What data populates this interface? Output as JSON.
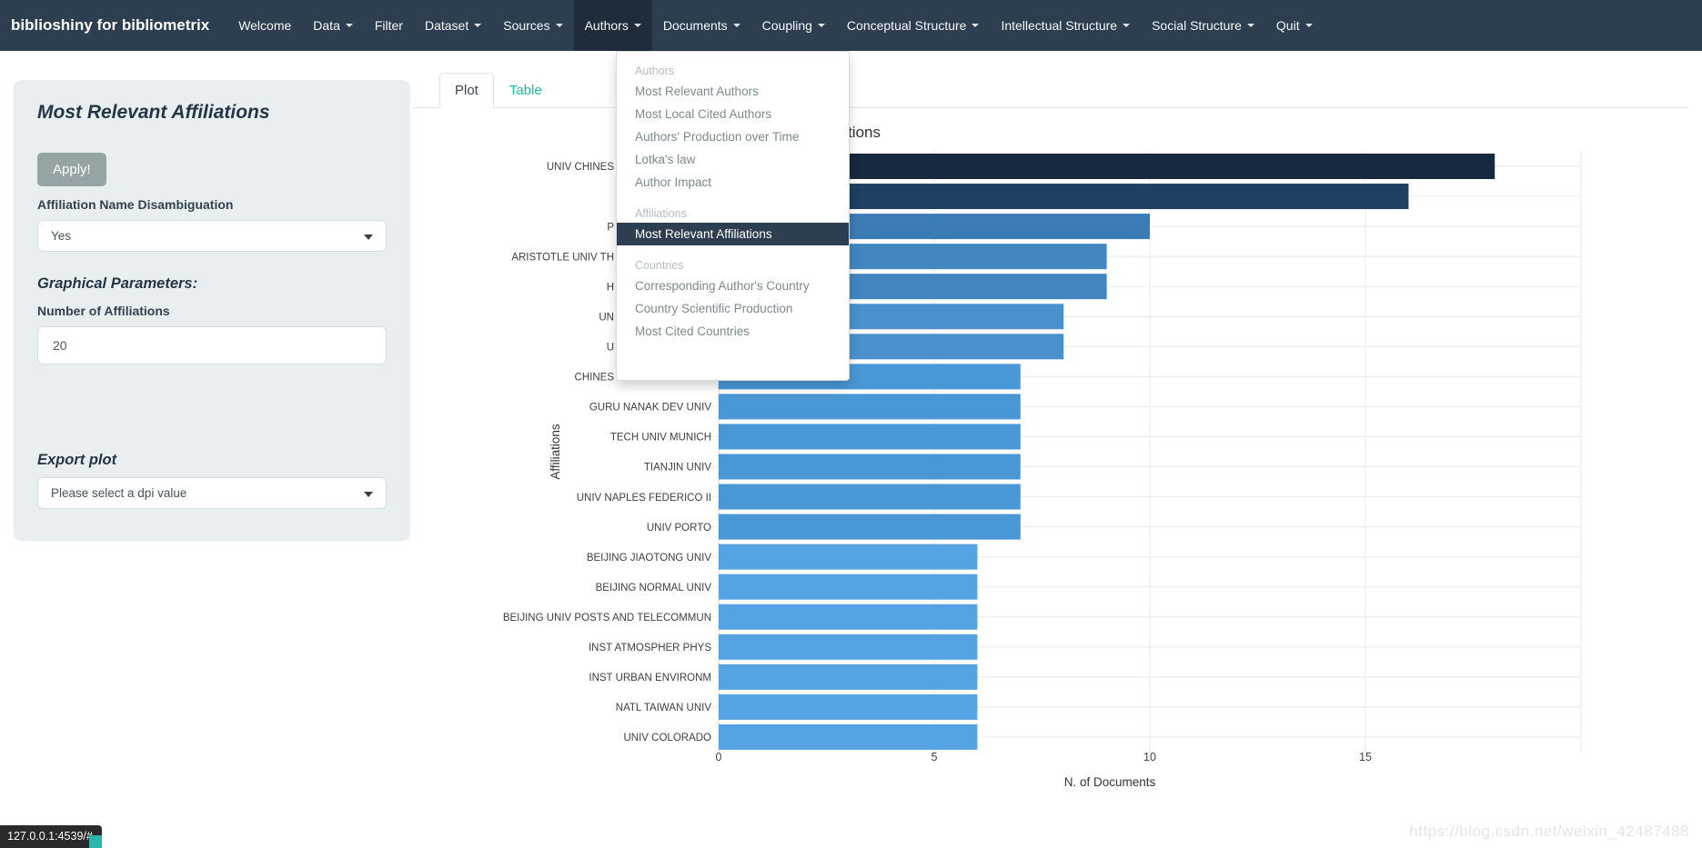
{
  "navbar": {
    "brand": "biblioshiny for bibliometrix",
    "items": [
      {
        "label": "Welcome",
        "caret": false,
        "active": false
      },
      {
        "label": "Data",
        "caret": true,
        "active": false
      },
      {
        "label": "Filter",
        "caret": false,
        "active": false
      },
      {
        "label": "Dataset",
        "caret": true,
        "active": false
      },
      {
        "label": "Sources",
        "caret": true,
        "active": false
      },
      {
        "label": "Authors",
        "caret": true,
        "active": true
      },
      {
        "label": "Documents",
        "caret": true,
        "active": false
      },
      {
        "label": "Coupling",
        "caret": true,
        "active": false
      },
      {
        "label": "Conceptual Structure",
        "caret": true,
        "active": false
      },
      {
        "label": "Intellectual Structure",
        "caret": true,
        "active": false
      },
      {
        "label": "Social Structure",
        "caret": true,
        "active": false
      },
      {
        "label": "Quit",
        "caret": true,
        "active": false
      }
    ]
  },
  "authors_menu": {
    "sections": [
      {
        "header": "Authors",
        "items": [
          {
            "label": "Most Relevant Authors",
            "active": false
          },
          {
            "label": "Most Local Cited Authors",
            "active": false
          },
          {
            "label": "Authors' Production over Time",
            "active": false
          },
          {
            "label": "Lotka's law",
            "active": false
          },
          {
            "label": "Author Impact",
            "active": false
          }
        ]
      },
      {
        "header": "Affiliations",
        "items": [
          {
            "label": "Most Relevant Affiliations",
            "active": true
          }
        ]
      },
      {
        "header": "Countries",
        "items": [
          {
            "label": "Corresponding Author's Country",
            "active": false
          },
          {
            "label": "Country Scientific Production",
            "active": false
          },
          {
            "label": "Most Cited Countries",
            "active": false
          }
        ]
      }
    ]
  },
  "sidebar": {
    "title": "Most Relevant Affiliations",
    "apply_label": "Apply!",
    "disambiguation_label": "Affiliation Name Disambiguation",
    "disambiguation_value": "Yes",
    "graphical_parameters_heading": "Graphical Parameters:",
    "number_of_affiliations_label": "Number of Affiliations",
    "number_of_affiliations_value": "20",
    "export_heading": "Export plot",
    "dpi_placeholder": "Please select a dpi value"
  },
  "tabs": [
    {
      "label": "Plot",
      "active": true
    },
    {
      "label": "Table",
      "active": false
    }
  ],
  "chart_data": {
    "type": "bar",
    "orientation": "horizontal",
    "title": "Most Relevant Affiliations",
    "xlabel": "N. of Documents",
    "ylabel": "Affiliations",
    "xlim": [
      0,
      20
    ],
    "xticks": [
      0,
      5,
      10,
      15
    ],
    "grid": true,
    "legend": "none",
    "labels_note": "top 8 category labels are partially covered by the open Authors menu; fragments below are exactly what is rendered",
    "categories": [
      "UNIV CHINES",
      "",
      "P",
      "ARISTOTLE UNIV TH",
      "H",
      "UN",
      "U",
      "CHINES",
      "GURU NANAK DEV UNIV",
      "TECH UNIV MUNICH",
      "TIANJIN UNIV",
      "UNIV NAPLES FEDERICO II",
      "UNIV PORTO",
      "BEIJING JIAOTONG UNIV",
      "BEIJING NORMAL UNIV",
      "BEIJING UNIV POSTS AND TELECOMMUN",
      "INST ATMOSPHER PHYS",
      "INST URBAN ENVIRONM",
      "NATL TAIWAN UNIV",
      "UNIV COLORADO"
    ],
    "values": [
      18,
      16,
      10,
      9,
      9,
      8,
      8,
      7,
      7,
      7,
      7,
      7,
      7,
      6,
      6,
      6,
      6,
      6,
      6,
      6
    ],
    "bar_colors": [
      "#16293e",
      "#1f4062",
      "#3c7cb6",
      "#4285c0",
      "#4285c0",
      "#4a90cc",
      "#4a90cc",
      "#4997d5",
      "#4997d5",
      "#4997d5",
      "#4997d5",
      "#4997d5",
      "#4997d5",
      "#55a3e2",
      "#55a3e2",
      "#55a3e2",
      "#55a3e2",
      "#55a3e2",
      "#55a3e2",
      "#55a3e2"
    ]
  },
  "status": {
    "address": "127.0.0.1:4539/#",
    "watermark": "https://blog.csdn.net/weixin_42487488"
  },
  "colors": {
    "navbar_bg": "#2c3e50",
    "navbar_active_bg": "#1f2c3a",
    "accent_teal": "#18bc9c",
    "button_gray": "#95a5a6",
    "menu_active_bg": "#2c3e50",
    "panel_bg": "#e9eef0"
  }
}
